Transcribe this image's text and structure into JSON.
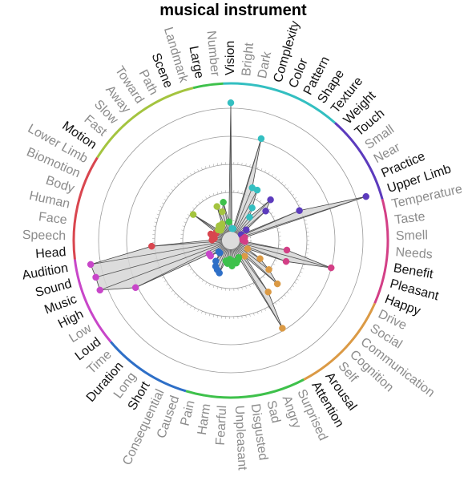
{
  "chart_data": {
    "type": "radial",
    "title": "musical instrument",
    "grid_rings": 5,
    "categories": [
      {
        "label": "Vision",
        "emph": true,
        "group": 0,
        "value": 5.6
      },
      {
        "label": "Bright",
        "emph": false,
        "group": 0,
        "value": 0.0
      },
      {
        "label": "Dark",
        "emph": false,
        "group": 0,
        "value": 0.0
      },
      {
        "label": "Complexity",
        "emph": true,
        "group": 0,
        "value": 4.2
      },
      {
        "label": "Color",
        "emph": true,
        "group": 0,
        "value": 2.0
      },
      {
        "label": "Pattern",
        "emph": true,
        "group": 0,
        "value": 2.0
      },
      {
        "label": "Shape",
        "emph": true,
        "group": 0,
        "value": 1.2
      },
      {
        "label": "Texture",
        "emph": true,
        "group": 0,
        "value": 0.8
      },
      {
        "label": "Weight",
        "emph": true,
        "group": 1,
        "value": 2.0
      },
      {
        "label": "Touch",
        "emph": true,
        "group": 1,
        "value": 1.5
      },
      {
        "label": "Small",
        "emph": false,
        "group": 1,
        "value": 0.3
      },
      {
        "label": "Near",
        "emph": false,
        "group": 1,
        "value": 0.0
      },
      {
        "label": "Practice",
        "emph": true,
        "group": 1,
        "value": 2.8
      },
      {
        "label": "Upper Limb",
        "emph": true,
        "group": 1,
        "value": 5.8
      },
      {
        "label": "Temperature",
        "emph": false,
        "group": 2,
        "value": 0.1
      },
      {
        "label": "Taste",
        "emph": false,
        "group": 2,
        "value": 0.0
      },
      {
        "label": "Smell",
        "emph": false,
        "group": 2,
        "value": 0.0
      },
      {
        "label": "Needs",
        "emph": false,
        "group": 2,
        "value": 0.1
      },
      {
        "label": "Benefit",
        "emph": true,
        "group": 2,
        "value": 2.0
      },
      {
        "label": "Pleasant",
        "emph": true,
        "group": 2,
        "value": 4.1
      },
      {
        "label": "Happy",
        "emph": true,
        "group": 2,
        "value": 2.1
      },
      {
        "label": "Drive",
        "emph": false,
        "group": 3,
        "value": 0.3
      },
      {
        "label": "Social",
        "emph": false,
        "group": 3,
        "value": 1.0
      },
      {
        "label": "Communication",
        "emph": false,
        "group": 3,
        "value": 1.6
      },
      {
        "label": "Cognition",
        "emph": false,
        "group": 3,
        "value": 2.3
      },
      {
        "label": "Self",
        "emph": false,
        "group": 3,
        "value": 0.4
      },
      {
        "label": "Arousal",
        "emph": true,
        "group": 3,
        "value": 2.3
      },
      {
        "label": "Attention",
        "emph": true,
        "group": 3,
        "value": 4.0
      },
      {
        "label": "Surprised",
        "emph": false,
        "group": 4,
        "value": 0.3
      },
      {
        "label": "Angry",
        "emph": false,
        "group": 4,
        "value": 0.4
      },
      {
        "label": "Sad",
        "emph": false,
        "group": 4,
        "value": 0.5
      },
      {
        "label": "Disgusted",
        "emph": false,
        "group": 4,
        "value": 0.4
      },
      {
        "label": "Unpleasant",
        "emph": false,
        "group": 4,
        "value": 0.6
      },
      {
        "label": "Fearful",
        "emph": false,
        "group": 4,
        "value": 0.3
      },
      {
        "label": "Harm",
        "emph": false,
        "group": 4,
        "value": 0.5
      },
      {
        "label": "Pain",
        "emph": false,
        "group": 4,
        "value": 0.4
      },
      {
        "label": "Caused",
        "emph": false,
        "group": 5,
        "value": 1.0
      },
      {
        "label": "Consequential",
        "emph": false,
        "group": 5,
        "value": 0.9
      },
      {
        "label": "Short",
        "emph": true,
        "group": 5,
        "value": 0.8
      },
      {
        "label": "Long",
        "emph": false,
        "group": 5,
        "value": 0.6
      },
      {
        "label": "Duration",
        "emph": true,
        "group": 5,
        "value": 0.2
      },
      {
        "label": "Time",
        "emph": false,
        "group": 5,
        "value": 0.2
      },
      {
        "label": "Loud",
        "emph": true,
        "group": 6,
        "value": 0.6
      },
      {
        "label": "Low",
        "emph": false,
        "group": 6,
        "value": 0.6
      },
      {
        "label": "High",
        "emph": true,
        "group": 6,
        "value": 4.2
      },
      {
        "label": "Music",
        "emph": true,
        "group": 6,
        "value": 5.7
      },
      {
        "label": "Sound",
        "emph": true,
        "group": 6,
        "value": 5.7
      },
      {
        "label": "Audition",
        "emph": true,
        "group": 6,
        "value": 5.8
      },
      {
        "label": "Head",
        "emph": true,
        "group": 7,
        "value": 3.0
      },
      {
        "label": "Speech",
        "emph": false,
        "group": 7,
        "value": 0.3
      },
      {
        "label": "Face",
        "emph": false,
        "group": 7,
        "value": 0.2
      },
      {
        "label": "Human",
        "emph": false,
        "group": 7,
        "value": 0.3
      },
      {
        "label": "Body",
        "emph": false,
        "group": 7,
        "value": 0.4
      },
      {
        "label": "Biomotion",
        "emph": false,
        "group": 7,
        "value": 0.2
      },
      {
        "label": "Lower Limb",
        "emph": false,
        "group": 7,
        "value": 0.2
      },
      {
        "label": "Motion",
        "emph": true,
        "group": 8,
        "value": 1.5
      },
      {
        "label": "Fast",
        "emph": false,
        "group": 8,
        "value": 0.2
      },
      {
        "label": "Slow",
        "emph": false,
        "group": 8,
        "value": 0.1
      },
      {
        "label": "Away",
        "emph": false,
        "group": 8,
        "value": 0.3
      },
      {
        "label": "Toward",
        "emph": false,
        "group": 8,
        "value": 0.2
      },
      {
        "label": "Path",
        "emph": false,
        "group": 8,
        "value": 0.3
      },
      {
        "label": "Scene",
        "emph": true,
        "group": 8,
        "value": 1.1
      },
      {
        "label": "Landmark",
        "emph": false,
        "group": 8,
        "value": 0.8
      },
      {
        "label": "Large",
        "emph": true,
        "group": 9,
        "value": 1.2
      },
      {
        "label": "Number",
        "emph": false,
        "group": 9,
        "value": 0.3
      }
    ],
    "groups": [
      {
        "color": "#33bfc1"
      },
      {
        "color": "#5c3bbd"
      },
      {
        "color": "#d33f86"
      },
      {
        "color": "#db9a45"
      },
      {
        "color": "#3ec14b"
      },
      {
        "color": "#2e6fc7"
      },
      {
        "color": "#c846c9"
      },
      {
        "color": "#d9464f"
      },
      {
        "color": "#a4c43f"
      },
      {
        "color": "#3ec14b"
      }
    ],
    "emph_color": "#111111",
    "muted_color": "#8c8c8c",
    "fill_color": "#d6d6d6",
    "grid_color": "#9a9a9a"
  }
}
